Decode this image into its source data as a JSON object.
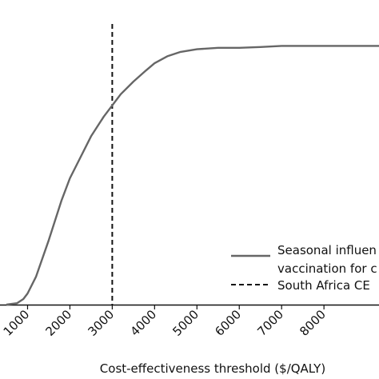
{
  "chart_data": {
    "type": "line",
    "xlabel": "Cost-effectiveness threshold ($/QALY)",
    "x_ticks": [
      1000,
      2000,
      3000,
      4000,
      5000,
      6000,
      7000,
      8000
    ],
    "xlim": [
      500,
      9300
    ],
    "ylim": [
      0,
      1
    ],
    "grid": false,
    "legend_position": "bottom-right",
    "series": [
      {
        "name": "Seasonal influenza vaccination for c",
        "legend_lines": [
          "Seasonal influen",
          "vaccination for c"
        ],
        "color": "#666666",
        "style": "solid",
        "x": [
          500,
          750,
          900,
          1000,
          1200,
          1500,
          1800,
          2000,
          2200,
          2500,
          2800,
          3000,
          3200,
          3500,
          3800,
          4000,
          4300,
          4600,
          5000,
          5500,
          6000,
          6500,
          7000,
          7500,
          8000,
          8500,
          9000,
          9300
        ],
        "y": [
          0.0,
          0.005,
          0.02,
          0.04,
          0.1,
          0.23,
          0.37,
          0.45,
          0.51,
          0.6,
          0.67,
          0.71,
          0.75,
          0.795,
          0.835,
          0.86,
          0.885,
          0.9,
          0.91,
          0.915,
          0.915,
          0.918,
          0.922,
          0.922,
          0.922,
          0.922,
          0.922,
          0.922
        ]
      }
    ],
    "reference_line": {
      "name": "South Africa CE",
      "x": 3000,
      "style": "dashed",
      "color": "#111111"
    }
  }
}
